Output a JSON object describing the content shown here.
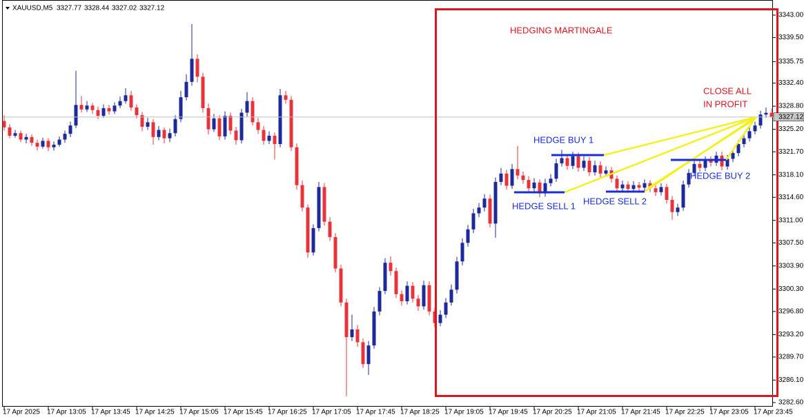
{
  "chart_data": {
    "type": "candlestick",
    "symbol": "XAUUSD,M5",
    "bull_color": "#1c2a9c",
    "bear_color": "#e8333a",
    "ylim": [
      3281.96,
      3345.36
    ],
    "yticks": [
      {
        "value": 3343,
        "label": "3343.00"
      },
      {
        "value": 3339.5,
        "label": "3339.50"
      },
      3335.75,
      {
        "value": 3332.4,
        "label": "3332.40"
      },
      {
        "value": 3328.8,
        "label": "3328.80"
      },
      {
        "value": 3325.2,
        "label": "3325.20"
      },
      {
        "value": 3321.7,
        "label": "3321.70"
      },
      {
        "value": 3318.1,
        "label": "3318.10"
      },
      {
        "value": 3314.6,
        "label": "3314.60"
      },
      {
        "value": 3311,
        "label": "3311.00"
      },
      {
        "value": 3307.5,
        "label": "3307.50"
      },
      {
        "value": 3303.9,
        "label": "3303.90"
      },
      {
        "value": 3300.3,
        "label": "3300.30"
      },
      {
        "value": 3296.8,
        "label": "3296.80"
      },
      {
        "value": 3293.2,
        "label": "3293.20"
      },
      {
        "value": 3289.7,
        "label": "3289.70"
      },
      {
        "value": 3286.1,
        "label": "3286.10"
      },
      {
        "value": 3282.6,
        "label": "3282.60"
      }
    ],
    "categories": [
      "17 Apr 2025",
      null,
      null,
      null,
      null,
      null,
      null,
      null,
      "17 Apr 13:05",
      null,
      null,
      null,
      null,
      null,
      null,
      null,
      "17 Apr 13:45",
      null,
      null,
      null,
      null,
      null,
      null,
      null,
      "17 Apr 14:25",
      null,
      null,
      null,
      null,
      null,
      null,
      null,
      "17 Apr 15:05",
      null,
      null,
      null,
      null,
      null,
      null,
      null,
      "17 Apr 15:45",
      null,
      null,
      null,
      null,
      null,
      null,
      null,
      "17 Apr 16:25",
      null,
      null,
      null,
      null,
      null,
      null,
      null,
      "17 Apr 17:05",
      null,
      null,
      null,
      null,
      null,
      null,
      null,
      "17 Apr 17:45",
      null,
      null,
      null,
      null,
      null,
      null,
      null,
      "17 Apr 18:25",
      null,
      null,
      null,
      null,
      null,
      null,
      null,
      "17 Apr 19:05",
      null,
      null,
      null,
      null,
      null,
      null,
      null,
      "17 Apr 19:45",
      null,
      null,
      null,
      null,
      null,
      null,
      null,
      "17 Apr 20:25",
      null,
      null,
      null,
      null,
      null,
      null,
      null,
      "17 Apr 21:05",
      null,
      null,
      null,
      null,
      null,
      null,
      null,
      "17 Apr 21:45",
      null,
      null,
      null,
      null,
      null,
      null,
      null,
      "17 Apr 22:25",
      null,
      null,
      null,
      null,
      null,
      null,
      null,
      "17 Apr 23:05",
      null,
      null,
      null,
      null,
      null,
      null,
      null,
      "17 Apr 23:45",
      null,
      null,
      null
    ],
    "candles": [
      [
        3326.5,
        3327.4,
        3325.0,
        3325.5
      ],
      [
        3325.5,
        3326.0,
        3323.8,
        3324.2
      ],
      [
        3324.2,
        3325.1,
        3323.9,
        3324.6
      ],
      [
        3324.6,
        3325.0,
        3323.2,
        3323.6
      ],
      [
        3323.6,
        3324.5,
        3323.0,
        3324.0
      ],
      [
        3324.0,
        3324.4,
        3322.6,
        3323.1
      ],
      [
        3323.1,
        3323.6,
        3321.9,
        3322.5
      ],
      [
        3322.5,
        3323.9,
        3322.2,
        3323.4
      ],
      [
        3323.4,
        3323.8,
        3321.8,
        3322.4
      ],
      [
        3322.4,
        3323.3,
        3321.9,
        3322.8
      ],
      [
        3322.8,
        3324.1,
        3322.5,
        3323.6
      ],
      [
        3323.6,
        3325.0,
        3323.1,
        3324.5
      ],
      [
        3324.5,
        3326.4,
        3324.0,
        3325.8
      ],
      [
        3325.8,
        3334.3,
        3325.4,
        3329.0
      ],
      [
        3329.0,
        3330.4,
        3327.8,
        3328.3
      ],
      [
        3328.3,
        3329.6,
        3327.9,
        3328.9
      ],
      [
        3328.9,
        3329.3,
        3327.6,
        3328.2
      ],
      [
        3328.2,
        3328.7,
        3326.8,
        3327.3
      ],
      [
        3327.3,
        3329.1,
        3327.0,
        3328.5
      ],
      [
        3328.5,
        3329.0,
        3327.5,
        3328.0
      ],
      [
        3328.0,
        3329.4,
        3327.6,
        3328.9
      ],
      [
        3328.9,
        3330.3,
        3328.5,
        3329.6
      ],
      [
        3329.6,
        3331.6,
        3329.2,
        3330.5
      ],
      [
        3330.5,
        3331.2,
        3328.1,
        3328.6
      ],
      [
        3328.6,
        3329.1,
        3326.9,
        3327.4
      ],
      [
        3327.4,
        3327.9,
        3324.9,
        3325.6
      ],
      [
        3325.6,
        3327.0,
        3325.1,
        3326.3
      ],
      [
        3326.3,
        3326.8,
        3322.8,
        3324.0
      ],
      [
        3324.0,
        3325.7,
        3323.5,
        3325.1
      ],
      [
        3325.1,
        3325.5,
        3323.0,
        3323.8
      ],
      [
        3323.8,
        3325.3,
        3323.2,
        3324.6
      ],
      [
        3324.6,
        3327.4,
        3324.1,
        3326.8
      ],
      [
        3326.8,
        3331.2,
        3326.3,
        3330.2
      ],
      [
        3330.2,
        3333.8,
        3329.7,
        3332.6
      ],
      [
        3332.6,
        3341.6,
        3332.0,
        3336.2
      ],
      [
        3336.2,
        3336.9,
        3332.5,
        3333.4
      ],
      [
        3333.4,
        3334.0,
        3327.8,
        3328.5
      ],
      [
        3328.5,
        3329.2,
        3324.4,
        3325.2
      ],
      [
        3325.2,
        3327.6,
        3324.8,
        3326.9
      ],
      [
        3326.9,
        3327.4,
        3323.5,
        3324.1
      ],
      [
        3324.1,
        3328.0,
        3323.6,
        3327.3
      ],
      [
        3327.3,
        3327.8,
        3324.4,
        3325.0
      ],
      [
        3325.0,
        3325.6,
        3322.8,
        3323.5
      ],
      [
        3323.5,
        3328.4,
        3323.0,
        3327.8
      ],
      [
        3327.8,
        3331.0,
        3327.2,
        3329.6
      ],
      [
        3329.6,
        3330.2,
        3325.8,
        3326.3
      ],
      [
        3326.3,
        3327.0,
        3324.5,
        3325.1
      ],
      [
        3325.1,
        3325.7,
        3322.8,
        3323.4
      ],
      [
        3323.4,
        3324.9,
        3322.9,
        3324.2
      ],
      [
        3324.2,
        3324.7,
        3320.5,
        3322.9
      ],
      [
        3322.9,
        3331.5,
        3322.4,
        3330.5
      ],
      [
        3330.5,
        3331.2,
        3329.2,
        3329.8
      ],
      [
        3329.8,
        3330.4,
        3321.8,
        3322.4
      ],
      [
        3322.4,
        3323.0,
        3315.8,
        3316.5
      ],
      [
        3316.5,
        3317.2,
        3312.4,
        3313.0
      ],
      [
        3313.0,
        3313.5,
        3305.2,
        3306.0
      ],
      [
        3306.0,
        3310.4,
        3305.5,
        3309.8
      ],
      [
        3309.8,
        3317.0,
        3309.3,
        3316.2
      ],
      [
        3316.2,
        3316.8,
        3310.2,
        3310.8
      ],
      [
        3310.8,
        3311.5,
        3307.8,
        3308.4
      ],
      [
        3308.4,
        3309.0,
        3302.9,
        3303.5
      ],
      [
        3303.5,
        3304.1,
        3297.6,
        3298.2
      ],
      [
        3298.2,
        3298.8,
        3283.6,
        3292.8
      ],
      [
        3292.8,
        3296.3,
        3292.2,
        3294.0
      ],
      [
        3294.0,
        3294.7,
        3291.3,
        3292.0
      ],
      [
        3292.0,
        3292.6,
        3288.0,
        3288.6
      ],
      [
        3288.6,
        3292.2,
        3286.9,
        3291.5
      ],
      [
        3291.5,
        3297.5,
        3291.0,
        3296.8
      ],
      [
        3296.8,
        3300.6,
        3296.2,
        3300.0
      ],
      [
        3300.0,
        3305.1,
        3299.5,
        3304.4
      ],
      [
        3304.4,
        3305.4,
        3302.4,
        3303.1
      ],
      [
        3303.1,
        3303.7,
        3298.9,
        3299.5
      ],
      [
        3299.5,
        3300.1,
        3297.7,
        3298.4
      ],
      [
        3298.4,
        3301.5,
        3297.9,
        3300.8
      ],
      [
        3300.8,
        3301.4,
        3298.2,
        3298.8
      ],
      [
        3298.8,
        3299.4,
        3296.9,
        3297.6
      ],
      [
        3297.6,
        3301.6,
        3297.1,
        3300.9
      ],
      [
        3300.9,
        3301.5,
        3296.2,
        3296.8
      ],
      [
        3296.8,
        3297.4,
        3294.3,
        3295.0
      ],
      [
        3295.0,
        3297.0,
        3294.5,
        3296.3
      ],
      [
        3296.3,
        3298.9,
        3295.8,
        3298.2
      ],
      [
        3298.2,
        3301.0,
        3297.7,
        3300.2
      ],
      [
        3300.2,
        3305.3,
        3299.6,
        3304.6
      ],
      [
        3304.6,
        3308.2,
        3304.0,
        3307.5
      ],
      [
        3307.5,
        3310.3,
        3306.9,
        3309.6
      ],
      [
        3309.6,
        3312.8,
        3309.0,
        3312.1
      ],
      [
        3312.1,
        3313.7,
        3311.5,
        3313.0
      ],
      [
        3313.0,
        3315.1,
        3312.4,
        3314.4
      ],
      [
        3314.4,
        3315.0,
        3309.9,
        3310.5
      ],
      [
        3310.5,
        3317.7,
        3308.3,
        3317.0
      ],
      [
        3317.0,
        3319.2,
        3316.5,
        3318.3
      ],
      [
        3318.3,
        3318.9,
        3315.8,
        3316.4
      ],
      [
        3316.4,
        3319.8,
        3315.9,
        3319.0
      ],
      [
        3319.0,
        3322.6,
        3317.4,
        3318.0
      ],
      [
        3318.0,
        3318.6,
        3316.7,
        3317.3
      ],
      [
        3317.3,
        3317.9,
        3315.4,
        3316.0
      ],
      [
        3316.0,
        3317.6,
        3315.5,
        3316.9
      ],
      [
        3316.9,
        3317.4,
        3314.6,
        3315.2
      ],
      [
        3315.2,
        3317.5,
        3314.7,
        3316.8
      ],
      [
        3316.8,
        3318.2,
        3316.3,
        3317.5
      ],
      [
        3317.5,
        3320.6,
        3317.0,
        3319.9
      ],
      [
        3319.9,
        3322.0,
        3319.4,
        3320.7
      ],
      [
        3320.7,
        3321.3,
        3318.9,
        3319.5
      ],
      [
        3319.5,
        3321.7,
        3319.0,
        3321.0
      ],
      [
        3321.0,
        3321.6,
        3318.6,
        3319.2
      ],
      [
        3319.2,
        3321.0,
        3318.7,
        3320.3
      ],
      [
        3320.3,
        3320.9,
        3317.9,
        3318.5
      ],
      [
        3318.5,
        3320.3,
        3318.0,
        3319.6
      ],
      [
        3319.6,
        3320.2,
        3317.7,
        3318.3
      ],
      [
        3318.3,
        3319.4,
        3317.8,
        3318.8
      ],
      [
        3318.8,
        3319.3,
        3316.9,
        3317.5
      ],
      [
        3317.5,
        3318.0,
        3315.4,
        3316.0
      ],
      [
        3316.0,
        3317.2,
        3315.5,
        3316.6
      ],
      [
        3316.6,
        3317.1,
        3315.3,
        3315.9
      ],
      [
        3315.9,
        3317.1,
        3315.4,
        3316.5
      ],
      [
        3316.5,
        3317.0,
        3315.5,
        3316.1
      ],
      [
        3316.1,
        3317.4,
        3315.6,
        3316.8
      ],
      [
        3316.8,
        3317.3,
        3315.4,
        3316.0
      ],
      [
        3316.0,
        3316.5,
        3314.8,
        3315.4
      ],
      [
        3315.4,
        3316.8,
        3314.9,
        3316.2
      ],
      [
        3316.2,
        3316.7,
        3313.6,
        3314.2
      ],
      [
        3314.2,
        3314.8,
        3311.1,
        3312.3
      ],
      [
        3312.3,
        3313.6,
        3311.7,
        3313.0
      ],
      [
        3313.0,
        3317.2,
        3312.5,
        3316.6
      ],
      [
        3316.6,
        3319.0,
        3316.1,
        3318.4
      ],
      [
        3318.4,
        3320.4,
        3317.9,
        3319.8
      ],
      [
        3319.8,
        3320.4,
        3318.6,
        3319.2
      ],
      [
        3319.2,
        3321.0,
        3318.7,
        3320.4
      ],
      [
        3320.4,
        3321.0,
        3319.4,
        3320.0
      ],
      [
        3320.0,
        3321.7,
        3319.5,
        3321.1
      ],
      [
        3321.1,
        3321.7,
        3318.8,
        3319.4
      ],
      [
        3319.4,
        3321.2,
        3318.9,
        3320.6
      ],
      [
        3320.6,
        3322.1,
        3320.1,
        3321.5
      ],
      [
        3321.5,
        3323.5,
        3321.0,
        3322.9
      ],
      [
        3322.9,
        3324.4,
        3322.4,
        3323.8
      ],
      [
        3323.8,
        3325.5,
        3323.3,
        3324.9
      ],
      [
        3324.9,
        3326.4,
        3324.4,
        3325.8
      ],
      [
        3325.8,
        3328.1,
        3325.3,
        3327.5
      ],
      [
        3327.5,
        3328.6,
        3327.0,
        3327.77
      ],
      [
        3327.77,
        3328.44,
        3327.02,
        3327.12
      ]
    ],
    "annotations": [
      {
        "text": "HEDGING MARTINGALE"
      },
      {
        "text": "CLOSE ALL"
      },
      {
        "text": "IN PROFIT"
      },
      {
        "text": "HEDGE BUY 1"
      },
      {
        "text": "HEDGE SELL 1"
      },
      {
        "text": "HEDGE SELL 2"
      },
      {
        "text": "HEDGE BUY 2"
      }
    ]
  }
}
